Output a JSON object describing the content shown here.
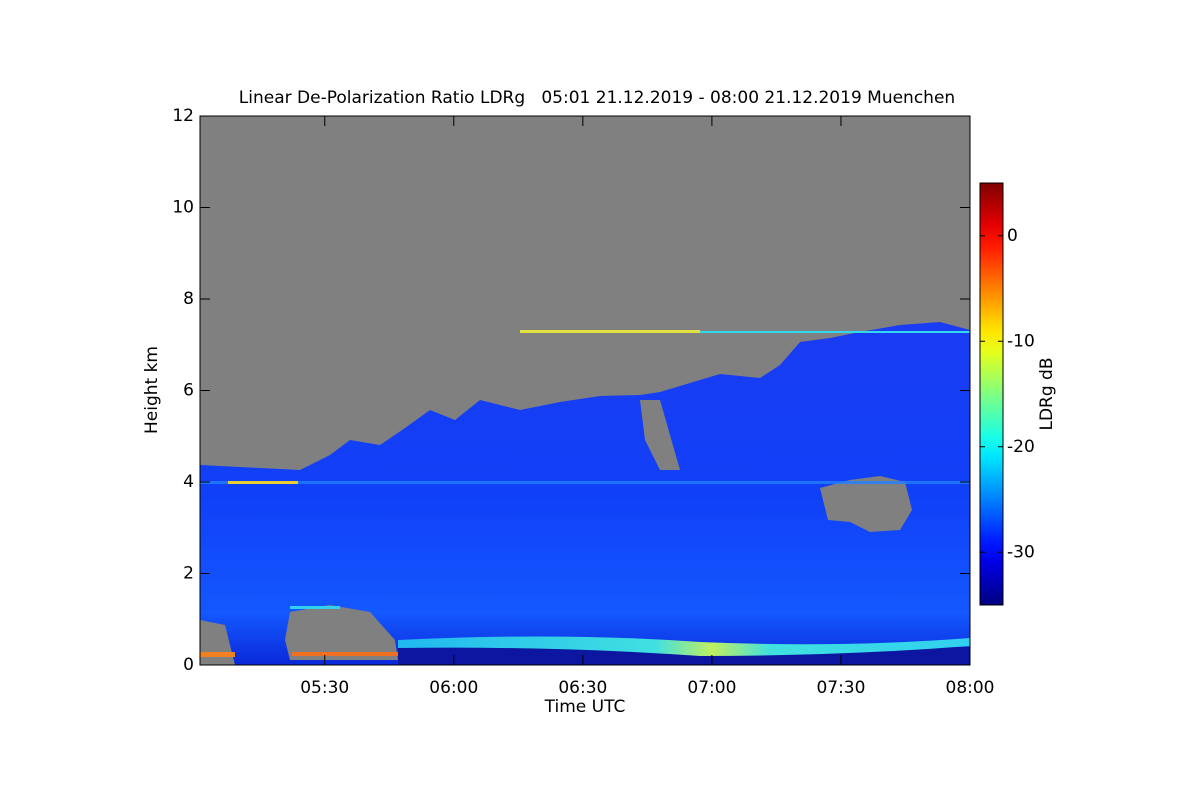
{
  "chart_data": {
    "type": "heatmap",
    "title": "Linear De-Polarization Ratio LDRg   05:01 21.12.2019 - 08:00 21.12.2019 Muenchen",
    "x_label": "Time UTC",
    "y_label": "Height km",
    "xlim": [
      301,
      480
    ],
    "xticks": [
      {
        "value": 330,
        "label": "05:30"
      },
      {
        "value": 360,
        "label": "06:00"
      },
      {
        "value": 390,
        "label": "06:30"
      },
      {
        "value": 420,
        "label": "07:00"
      },
      {
        "value": 450,
        "label": "07:30"
      },
      {
        "value": 480,
        "label": "08:00"
      }
    ],
    "ylim": [
      0,
      12
    ],
    "yticks": [
      0,
      2,
      4,
      6,
      8,
      10,
      12
    ],
    "colorbar": {
      "label": "LDRg dB",
      "lim": [
        -35,
        5
      ],
      "ticks": [
        -30,
        -20,
        -10,
        0
      ],
      "colormap": "jet"
    }
  }
}
